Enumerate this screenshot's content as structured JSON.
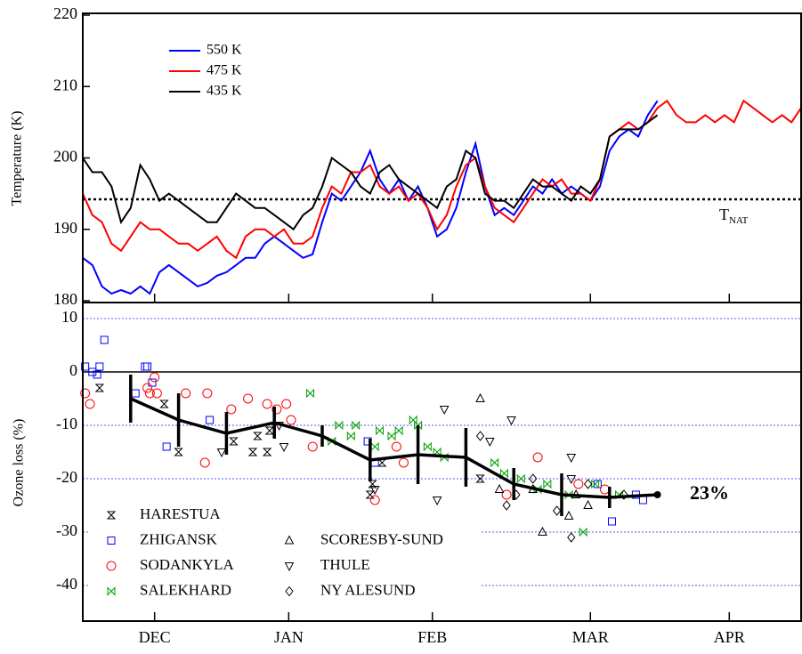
{
  "chart_data": [
    {
      "type": "line",
      "ylabel": "Temperature (K)",
      "xlim": [
        -10,
        140
      ],
      "ylim": [
        179.75,
        220.25
      ],
      "yticks": [
        180,
        190,
        200,
        210,
        220
      ],
      "tnat": {
        "value": 194.2,
        "label": "T",
        "sub": "NAT"
      },
      "x": [
        -10,
        -8,
        -6,
        -4,
        -2,
        0,
        2,
        4,
        6,
        8,
        10,
        12,
        14,
        16,
        18,
        20,
        22,
        24,
        26,
        28,
        30,
        32,
        34,
        36,
        38,
        40,
        42,
        44,
        46,
        48,
        50,
        52,
        54,
        56,
        58,
        60,
        62,
        64,
        66,
        68,
        70,
        72,
        74,
        76,
        78,
        80,
        82,
        84,
        86,
        88,
        90,
        92,
        94,
        96,
        98,
        100,
        102,
        104,
        106,
        108,
        110,
        112,
        114,
        116,
        118,
        120,
        122,
        124,
        126,
        128,
        130,
        132,
        134,
        136,
        138,
        140
      ],
      "series": [
        {
          "name": "550 K",
          "color": "#0000ff",
          "values": [
            186,
            185,
            182,
            181,
            181.5,
            181,
            182,
            181,
            184,
            185,
            184,
            183,
            182,
            182.5,
            183.5,
            184,
            185,
            186,
            186,
            188,
            189,
            188,
            187,
            186,
            186.5,
            191,
            195,
            194,
            196,
            198,
            201,
            197,
            195,
            197,
            194,
            196,
            193,
            189,
            190,
            193,
            198,
            202,
            196,
            192,
            193,
            192,
            194,
            196,
            195,
            197,
            195,
            196,
            195,
            194,
            196,
            201,
            203,
            204,
            203,
            206,
            208,
            null,
            null,
            null,
            null,
            null,
            null,
            null,
            null,
            null,
            null,
            null,
            null,
            null,
            null,
            null
          ]
        },
        {
          "name": "475 K",
          "color": "#ff0000",
          "values": [
            195,
            192,
            191,
            188,
            187,
            189,
            191,
            190,
            190,
            189,
            188,
            188,
            187,
            188,
            189,
            187,
            186,
            189,
            190,
            190,
            189,
            190,
            188,
            188,
            189,
            193,
            196,
            195,
            198,
            198,
            199,
            196,
            195,
            196,
            194,
            195,
            193,
            190,
            192,
            196,
            199,
            200,
            196,
            193,
            192,
            191,
            193,
            195,
            197,
            196,
            197,
            195,
            195,
            194,
            197,
            203,
            204,
            205,
            204,
            205,
            207,
            208,
            206,
            205,
            205,
            206,
            205,
            206,
            205,
            208,
            207,
            206,
            205,
            206,
            205,
            207
          ]
        },
        {
          "name": "435 K",
          "color": "#000000",
          "values": [
            200,
            198,
            198,
            196,
            191,
            193,
            199,
            197,
            194,
            195,
            194,
            193,
            192,
            191,
            191,
            193,
            195,
            194,
            193,
            193,
            192,
            191,
            190,
            192,
            193,
            196,
            200,
            199,
            198,
            196,
            195,
            198,
            199,
            197,
            196,
            195,
            194,
            193,
            196,
            197,
            201,
            200,
            195,
            194,
            194,
            193,
            195,
            197,
            196,
            196,
            195,
            194,
            196,
            195,
            197,
            203,
            204,
            204,
            204,
            205,
            206,
            null,
            null,
            null,
            null,
            null,
            null,
            null,
            null,
            null,
            null,
            null,
            null,
            null,
            null,
            null
          ]
        }
      ]
    },
    {
      "type": "scatter",
      "ylabel": "Ozone loss (%)",
      "xlim": [
        -10,
        140
      ],
      "ylim": [
        -46.67,
        13
      ],
      "yticks": [
        -40,
        -30,
        -20,
        -10,
        0,
        10
      ],
      "xticks": [
        {
          "value": 5,
          "label": "DEC"
        },
        {
          "value": 33,
          "label": "JAN"
        },
        {
          "value": 63,
          "label": "FEB"
        },
        {
          "value": 96,
          "label": "MAR"
        },
        {
          "value": 125,
          "label": "APR"
        }
      ],
      "series": [
        {
          "name": "HARESTUA",
          "marker": "hourglass",
          "color": "#000000",
          "x": [
            -6.5,
            7,
            10,
            21.5,
            25.5,
            26.5,
            28.5,
            29,
            50,
            50.5,
            52.5,
            73
          ],
          "values": [
            -3,
            -6,
            -15,
            -13,
            -15,
            -12,
            -15,
            -11,
            -23,
            -21,
            -17,
            -20
          ]
        },
        {
          "name": "ZHIGANSK",
          "marker": "square",
          "color": "#0000ff",
          "x": [
            -9.5,
            -8,
            -7,
            -6.5,
            -5.5,
            1,
            3,
            3.5,
            4.5,
            7.5,
            16.5,
            49.5,
            51,
            97.5,
            100.5,
            105.5,
            107
          ],
          "values": [
            1,
            0,
            -0.5,
            1,
            6,
            -4,
            1,
            1,
            -2,
            -14,
            -9,
            -13,
            -17,
            -21,
            -28,
            -23,
            -24
          ]
        },
        {
          "name": "SODANKYLA",
          "marker": "circle",
          "color": "#ff0000",
          "x": [
            -9.5,
            -8.5,
            3.5,
            4,
            5,
            5.5,
            11.5,
            15.5,
            16,
            21,
            24.5,
            28.5,
            30.5,
            32.5,
            33.5,
            38,
            51,
            55.5,
            57,
            78.5,
            85,
            93.5,
            99
          ],
          "values": [
            -4,
            -6,
            -3,
            -4,
            -1,
            -4,
            -4,
            -17,
            -4,
            -7,
            -5,
            -6,
            -7,
            -6,
            -9,
            -14,
            -24,
            -14,
            -17,
            -23,
            -16,
            -21,
            -22
          ]
        },
        {
          "name": "SALEKHARD",
          "marker": "bowtie",
          "color": "#00a000",
          "x": [
            37.5,
            42,
            43.5,
            46,
            47,
            51,
            52,
            54.5,
            56,
            59,
            60,
            62,
            64,
            65.5,
            76,
            78,
            81.5,
            85,
            87,
            91.5,
            94.5,
            97,
            102
          ],
          "values": [
            -4,
            -13,
            -10,
            -12,
            -10,
            -14,
            -11,
            -12,
            -11,
            -9,
            -10,
            -14,
            -15,
            -16,
            -17,
            -19,
            -20,
            -22,
            -21,
            -23,
            -30,
            -21,
            -23
          ]
        },
        {
          "name": "SCORESBY-SUND",
          "marker": "triangle-up",
          "color": "#000000",
          "x": [
            73,
            77,
            84,
            86,
            91.5,
            93,
            95.5
          ],
          "values": [
            -5,
            -22,
            -22,
            -30,
            -27,
            -23,
            -25
          ]
        },
        {
          "name": "THULE",
          "marker": "triangle-down",
          "color": "#000000",
          "x": [
            19,
            32,
            31,
            51,
            64,
            65.5,
            79.5,
            92,
            92,
            75
          ],
          "values": [
            -15,
            -14,
            -10,
            -22,
            -24,
            -7,
            -9,
            -16,
            -20,
            -13
          ]
        },
        {
          "name": "NY ALESUND",
          "marker": "diamond",
          "color": "#000000",
          "x": [
            73,
            78.5,
            80.5,
            84,
            89,
            92,
            95.5,
            103
          ],
          "values": [
            -12,
            -25,
            -23,
            -20,
            -26,
            -31,
            -21,
            -23
          ]
        }
      ],
      "mean": {
        "x": [
          0,
          10,
          20,
          30,
          40,
          50,
          60,
          70,
          80,
          90,
          100,
          110
        ],
        "values": [
          -5,
          -9,
          -11.5,
          -9.5,
          -12,
          -16.5,
          -15.5,
          -16,
          -21,
          -23,
          -23.5,
          -23
        ],
        "errors": [
          4.5,
          5,
          4,
          3,
          2,
          4,
          5.5,
          5.5,
          3,
          4,
          2,
          0
        ],
        "color": "#000000",
        "annotation": "23%"
      }
    }
  ]
}
